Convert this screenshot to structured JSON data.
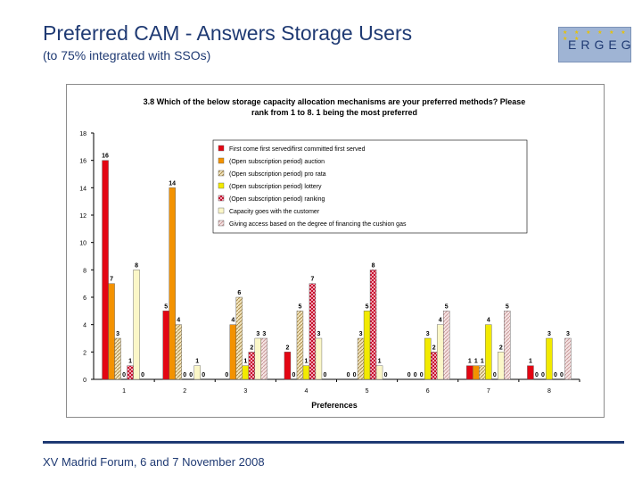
{
  "slide": {
    "title": "Preferred CAM - Answers Storage Users",
    "subtitle": "(to 75% integrated with SSOs)",
    "footer": "XV Madrid Forum, 6 and 7 November 2008",
    "logo_text": "ERGEG"
  },
  "chart_data": {
    "type": "bar",
    "title": "3.8 Which of the below storage capacity allocation mechanisms are your preferred methods? Please rank from 1 to 8. 1 being the most preferred",
    "title_lines": [
      "3.8 Which of the below storage capacity allocation mechanisms are your preferred methods? Please",
      "rank from 1 to 8. 1 being the most preferred"
    ],
    "xlabel": "Preferences",
    "ylabel": "",
    "categories": [
      "1",
      "2",
      "3",
      "4",
      "5",
      "6",
      "7",
      "8"
    ],
    "ylim": [
      0,
      18
    ],
    "yticks": [
      0,
      2,
      4,
      6,
      8,
      10,
      12,
      14,
      16,
      18
    ],
    "grid": false,
    "legend_position": "top-right",
    "series": [
      {
        "name": "First come first served/first committed first served",
        "color": "#e30613",
        "pattern": "solid",
        "values": [
          16,
          5,
          0,
          2,
          0,
          0,
          1,
          1
        ]
      },
      {
        "name": "(Open subscription period) auction",
        "color": "#f39200",
        "pattern": "solid",
        "values": [
          7,
          14,
          4,
          0,
          0,
          0,
          1,
          0
        ]
      },
      {
        "name": "(Open subscription period) pro rata",
        "color": "#c8a96e",
        "pattern": "hatch",
        "values": [
          3,
          4,
          6,
          5,
          3,
          0,
          1,
          0
        ]
      },
      {
        "name": "(Open subscription period) lottery",
        "color": "#f2ea00",
        "pattern": "solid",
        "values": [
          0,
          0,
          1,
          1,
          5,
          3,
          4,
          3
        ]
      },
      {
        "name": "(Open subscription period) ranking",
        "color": "#d8325a",
        "pattern": "dots",
        "values": [
          1,
          0,
          2,
          7,
          8,
          2,
          0,
          0
        ]
      },
      {
        "name": "Capacity goes with the customer",
        "color": "#fbf7c8",
        "pattern": "solid",
        "values": [
          8,
          1,
          3,
          3,
          1,
          4,
          2,
          0
        ]
      },
      {
        "name": "Giving access based on the degree of financing the cushion gas",
        "color": "#e8c3c3",
        "pattern": "hatch-light",
        "values": [
          0,
          0,
          3,
          0,
          0,
          5,
          5,
          3
        ]
      }
    ]
  }
}
